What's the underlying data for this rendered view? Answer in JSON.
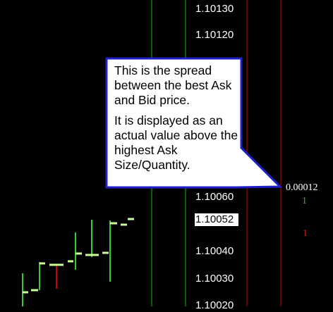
{
  "price_axis": {
    "labels": [
      "1.10130",
      "1.10120",
      "1.10060",
      "1.10040",
      "1.10030",
      "1.10020"
    ],
    "current_price": "1.10052"
  },
  "dom": {
    "spread": "0.00012",
    "ask_size": "1",
    "bid_size": "1"
  },
  "callout": {
    "line1": "This is the spread between the best Ask and Bid price.",
    "line2": "It is displayed as an actual value above the highest Ask Size/Quantity."
  },
  "colors": {
    "background": "#000000",
    "ask_line": "#00c800",
    "bid_line": "#c80000",
    "ask_text": "#28b428",
    "bid_text": "#c81e1e",
    "price_bar": "#33cc33",
    "tick_bar": "#ccff99",
    "callout_border": "#2020c8",
    "callout_fill": "#ffffff"
  }
}
